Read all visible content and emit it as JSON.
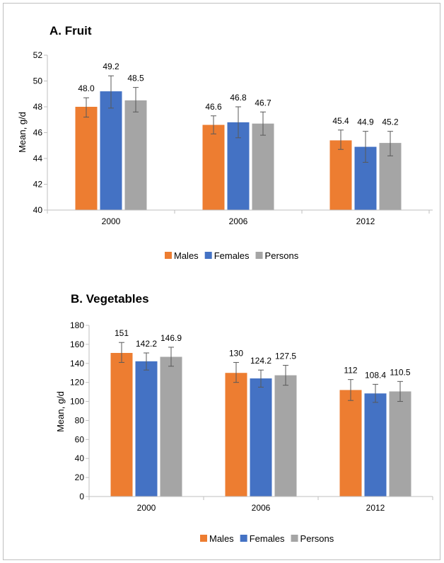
{
  "colors": {
    "Males": "#ED7D31",
    "Females": "#4472C4",
    "Persons": "#A5A5A5",
    "axis": "#bfbfbf",
    "errorbar": "#595959"
  },
  "chart_data": [
    {
      "type": "bar",
      "title": "A. Fruit",
      "ylabel": "Mean, g/d",
      "xlabel": "",
      "categories": [
        "2000",
        "2006",
        "2012"
      ],
      "ylim": [
        40,
        52
      ],
      "yticks": [
        40,
        42,
        44,
        46,
        48,
        50,
        52
      ],
      "ytick_labels": [
        "40",
        "42",
        "44",
        "46",
        "48",
        "50",
        "52"
      ],
      "legend_position": "bottom",
      "grid": false,
      "series": [
        {
          "name": "Males",
          "values": [
            48.0,
            46.6,
            45.4
          ],
          "labels": [
            "48.0",
            "46.6",
            "45.4"
          ],
          "err_low": [
            47.2,
            45.9,
            44.7
          ],
          "err_high": [
            48.7,
            47.3,
            46.2
          ]
        },
        {
          "name": "Females",
          "values": [
            49.2,
            46.8,
            44.9
          ],
          "labels": [
            "49.2",
            "46.8",
            "44.9"
          ],
          "err_low": [
            47.9,
            45.6,
            43.7
          ],
          "err_high": [
            50.4,
            48.0,
            46.1
          ]
        },
        {
          "name": "Persons",
          "values": [
            48.5,
            46.7,
            45.2
          ],
          "labels": [
            "48.5",
            "46.7",
            "45.2"
          ],
          "err_low": [
            47.6,
            45.8,
            44.2
          ],
          "err_high": [
            49.5,
            47.6,
            46.1
          ]
        }
      ]
    },
    {
      "type": "bar",
      "title": "B. Vegetables",
      "ylabel": "Mean, g/d",
      "xlabel": "",
      "categories": [
        "2000",
        "2006",
        "2012"
      ],
      "ylim": [
        0,
        180
      ],
      "yticks": [
        0,
        20,
        40,
        60,
        80,
        100,
        120,
        140,
        160,
        180
      ],
      "ytick_labels": [
        "0",
        "20",
        "40",
        "60",
        "80",
        "100",
        "120",
        "140",
        "160",
        "180"
      ],
      "legend_position": "bottom",
      "grid": false,
      "series": [
        {
          "name": "Males",
          "values": [
            151,
            130,
            112
          ],
          "labels": [
            "151",
            "130",
            "112"
          ],
          "err_low": [
            141,
            120,
            101
          ],
          "err_high": [
            162,
            141,
            123
          ]
        },
        {
          "name": "Females",
          "values": [
            142.2,
            124.2,
            108.4
          ],
          "labels": [
            "142.2",
            "124.2",
            "108.4"
          ],
          "err_low": [
            133,
            115,
            99
          ],
          "err_high": [
            151,
            133,
            118
          ]
        },
        {
          "name": "Persons",
          "values": [
            146.9,
            127.5,
            110.5
          ],
          "labels": [
            "146.9",
            "127.5",
            "110.5"
          ],
          "err_low": [
            137,
            117,
            100
          ],
          "err_high": [
            157,
            138,
            121
          ]
        }
      ]
    }
  ]
}
